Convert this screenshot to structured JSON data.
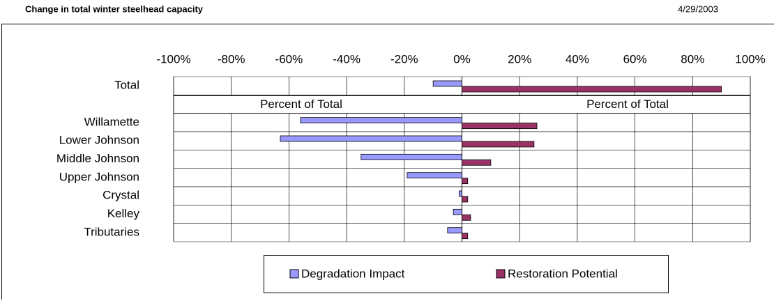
{
  "header": {
    "title": "Change in total winter steelhead capacity",
    "date": "4/29/2003"
  },
  "chart_data": {
    "type": "hbar",
    "categories": [
      "Total",
      null,
      "Willamette",
      "Lower Johnson",
      "Middle Johnson",
      "Upper Johnson",
      "Crystal",
      "Kelley",
      "Tributaries"
    ],
    "series": [
      {
        "name": "Degradation Impact",
        "color": "#9999ff",
        "values": [
          -10,
          null,
          -56,
          -63,
          -35,
          -19,
          -1,
          -3,
          -5
        ]
      },
      {
        "name": "Restoration Potential",
        "color": "#993366",
        "values": [
          90,
          null,
          26,
          25,
          10,
          2,
          2,
          3,
          2
        ]
      }
    ],
    "annotations": [
      "Percent of Total",
      "Percent of Total"
    ],
    "xlim": [
      -100,
      100
    ],
    "xticks": [
      {
        "value": -100,
        "label": "-100%"
      },
      {
        "value": -80,
        "label": "-80%"
      },
      {
        "value": -60,
        "label": "-60%"
      },
      {
        "value": -40,
        "label": "-40%"
      },
      {
        "value": -20,
        "label": "-20%"
      },
      {
        "value": 0,
        "label": "0%"
      },
      {
        "value": 20,
        "label": "20%"
      },
      {
        "value": 40,
        "label": "40%"
      },
      {
        "value": 60,
        "label": "60%"
      },
      {
        "value": 80,
        "label": "80%"
      },
      {
        "value": 100,
        "label": "100%"
      }
    ],
    "grid": true,
    "legend": "bottom"
  }
}
